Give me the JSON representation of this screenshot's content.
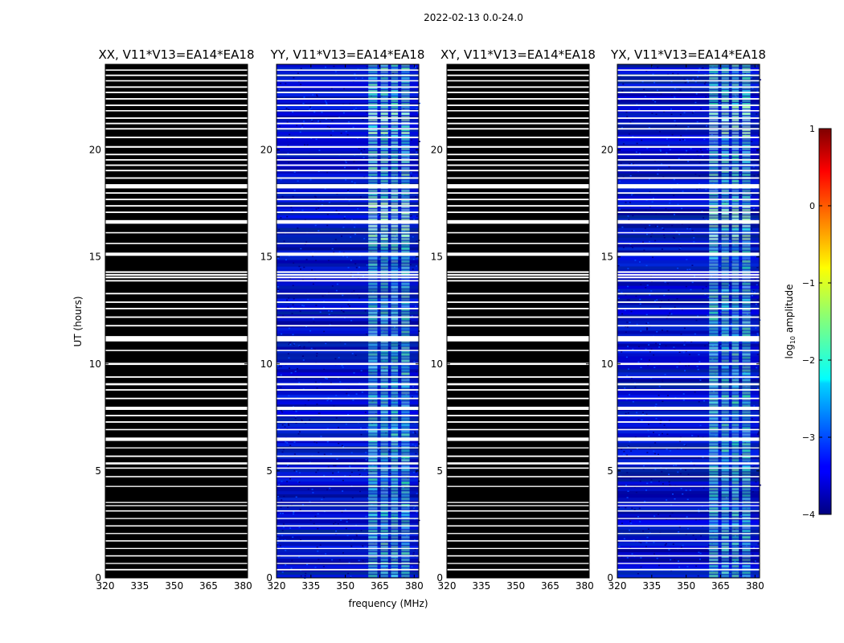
{
  "figure_title": "2022-02-13 0.0-24.0",
  "chart_data": {
    "type": "heatmap",
    "panels": [
      {
        "title": "XX, V11*V13=EA14*EA18",
        "pol": "XX",
        "flagged_all": true
      },
      {
        "title": "YY, V11*V13=EA14*EA18",
        "pol": "YY",
        "flagged_all": false
      },
      {
        "title": "XY, V11*V13=EA14*EA18",
        "pol": "XY",
        "flagged_all": true
      },
      {
        "title": "YX, V11*V13=EA14*EA18",
        "pol": "YX",
        "flagged_all": false
      }
    ],
    "xlabel": "frequency (MHz)",
    "ylabel": "UT (hours)",
    "xlim": [
      320,
      382
    ],
    "ylim": [
      0,
      24
    ],
    "xticks": [
      "320",
      "335",
      "350",
      "365",
      "380"
    ],
    "yticks": [
      "0",
      "5",
      "10",
      "15",
      "20"
    ],
    "xtick_values": [
      320,
      335,
      350,
      365,
      380
    ],
    "ytick_values": [
      0,
      5,
      10,
      15,
      20
    ],
    "bright_band_MHz": [
      360,
      378
    ],
    "colorbar": {
      "label": "log10 amplitude",
      "label_main": "log",
      "label_sub": "10",
      "label_rest": " amplitude",
      "range": [
        -4,
        1
      ],
      "ticks": [
        "1",
        "0",
        "−1",
        "−2",
        "−3",
        "−4"
      ],
      "tick_values": [
        1,
        0,
        -1,
        -2,
        -3,
        -4
      ],
      "colormap": "jet"
    },
    "colors": {
      "flagged_gap": "#ffffff",
      "no_data": "#000000",
      "low": "#0000cc",
      "high": "#7fff7f"
    },
    "flag_gaps_hours": [
      [
        0.35,
        0.42
      ],
      [
        0.65,
        0.7
      ],
      [
        1.0,
        1.06
      ],
      [
        1.35,
        1.4
      ],
      [
        1.7,
        1.76
      ],
      [
        2.05,
        2.1
      ],
      [
        2.4,
        2.46
      ],
      [
        2.75,
        2.8
      ],
      [
        3.1,
        3.16
      ],
      [
        3.35,
        3.4
      ],
      [
        3.5,
        3.55
      ],
      [
        4.25,
        4.3
      ],
      [
        4.7,
        4.76
      ],
      [
        5.1,
        5.16
      ],
      [
        5.3,
        5.4
      ],
      [
        5.65,
        5.72
      ],
      [
        6.05,
        6.1
      ],
      [
        6.4,
        6.56
      ],
      [
        6.9,
        6.96
      ],
      [
        7.25,
        7.32
      ],
      [
        7.55,
        7.62
      ],
      [
        7.85,
        8.0
      ],
      [
        8.35,
        8.42
      ],
      [
        8.75,
        8.82
      ],
      [
        9.0,
        9.1
      ],
      [
        9.35,
        9.42
      ],
      [
        9.95,
        10.05
      ],
      [
        10.6,
        10.66
      ],
      [
        11.05,
        11.3
      ],
      [
        11.75,
        11.82
      ],
      [
        12.15,
        12.22
      ],
      [
        12.55,
        12.62
      ],
      [
        12.85,
        12.92
      ],
      [
        13.25,
        13.32
      ],
      [
        13.85,
        13.92
      ],
      [
        14.0,
        14.08
      ],
      [
        14.12,
        14.2
      ],
      [
        14.25,
        14.33
      ],
      [
        15.05,
        15.2
      ],
      [
        15.6,
        15.66
      ],
      [
        16.1,
        16.16
      ],
      [
        16.55,
        16.72
      ],
      [
        17.05,
        17.12
      ],
      [
        17.35,
        17.42
      ],
      [
        17.65,
        17.72
      ],
      [
        17.95,
        18.02
      ],
      [
        18.2,
        18.4
      ],
      [
        18.65,
        18.72
      ],
      [
        19.0,
        19.07
      ],
      [
        19.25,
        19.32
      ],
      [
        19.5,
        19.57
      ],
      [
        19.75,
        19.82
      ],
      [
        20.1,
        20.18
      ],
      [
        20.55,
        20.62
      ],
      [
        20.95,
        21.02
      ],
      [
        21.2,
        21.27
      ],
      [
        21.45,
        21.52
      ],
      [
        21.8,
        21.86
      ],
      [
        22.05,
        22.12
      ],
      [
        22.35,
        22.42
      ],
      [
        22.65,
        22.72
      ],
      [
        22.9,
        22.97
      ],
      [
        23.2,
        23.26
      ],
      [
        23.45,
        23.52
      ],
      [
        23.7,
        23.76
      ]
    ]
  }
}
